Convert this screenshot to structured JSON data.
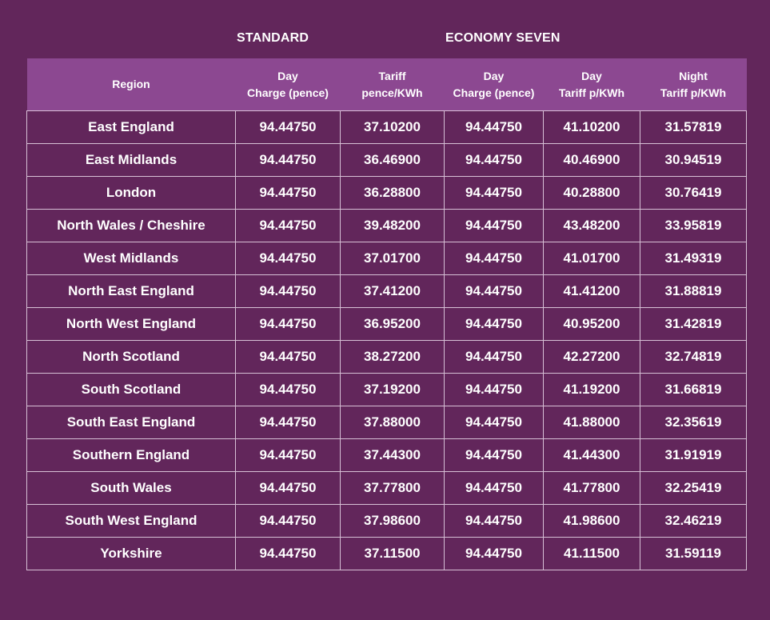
{
  "groups": {
    "standard": "STANDARD",
    "economy_seven": "ECONOMY SEVEN"
  },
  "colors": {
    "background": "#62265b",
    "header_band": "#8c4891",
    "cell_border": "#d7c0d6",
    "text": "#ffffff"
  },
  "table": {
    "headers": [
      {
        "line1": "Region",
        "line2": ""
      },
      {
        "line1": "Day",
        "line2": "Charge (pence)"
      },
      {
        "line1": "Tariff",
        "line2": "pence/KWh"
      },
      {
        "line1": "Day",
        "line2": "Charge (pence)"
      },
      {
        "line1": "Day",
        "line2": "Tariff p/KWh"
      },
      {
        "line1": "Night",
        "line2": "Tariff p/KWh"
      }
    ],
    "rows": [
      [
        "East England",
        "94.44750",
        "37.10200",
        "94.44750",
        "41.10200",
        "31.57819"
      ],
      [
        "East Midlands",
        "94.44750",
        "36.46900",
        "94.44750",
        "40.46900",
        "30.94519"
      ],
      [
        "London",
        "94.44750",
        "36.28800",
        "94.44750",
        "40.28800",
        "30.76419"
      ],
      [
        "North Wales / Cheshire",
        "94.44750",
        "39.48200",
        "94.44750",
        "43.48200",
        "33.95819"
      ],
      [
        "West Midlands",
        "94.44750",
        "37.01700",
        "94.44750",
        "41.01700",
        "31.49319"
      ],
      [
        "North East England",
        "94.44750",
        "37.41200",
        "94.44750",
        "41.41200",
        "31.88819"
      ],
      [
        "North West England",
        "94.44750",
        "36.95200",
        "94.44750",
        "40.95200",
        "31.42819"
      ],
      [
        "North Scotland",
        "94.44750",
        "38.27200",
        "94.44750",
        "42.27200",
        "32.74819"
      ],
      [
        "South Scotland",
        "94.44750",
        "37.19200",
        "94.44750",
        "41.19200",
        "31.66819"
      ],
      [
        "South East England",
        "94.44750",
        "37.88000",
        "94.44750",
        "41.88000",
        "32.35619"
      ],
      [
        "Southern England",
        "94.44750",
        "37.44300",
        "94.44750",
        "41.44300",
        "31.91919"
      ],
      [
        "South Wales",
        "94.44750",
        "37.77800",
        "94.44750",
        "41.77800",
        "32.25419"
      ],
      [
        "South West England",
        "94.44750",
        "37.98600",
        "94.44750",
        "41.98600",
        "32.46219"
      ],
      [
        "Yorkshire",
        "94.44750",
        "37.11500",
        "94.44750",
        "41.11500",
        "31.59119"
      ]
    ]
  }
}
